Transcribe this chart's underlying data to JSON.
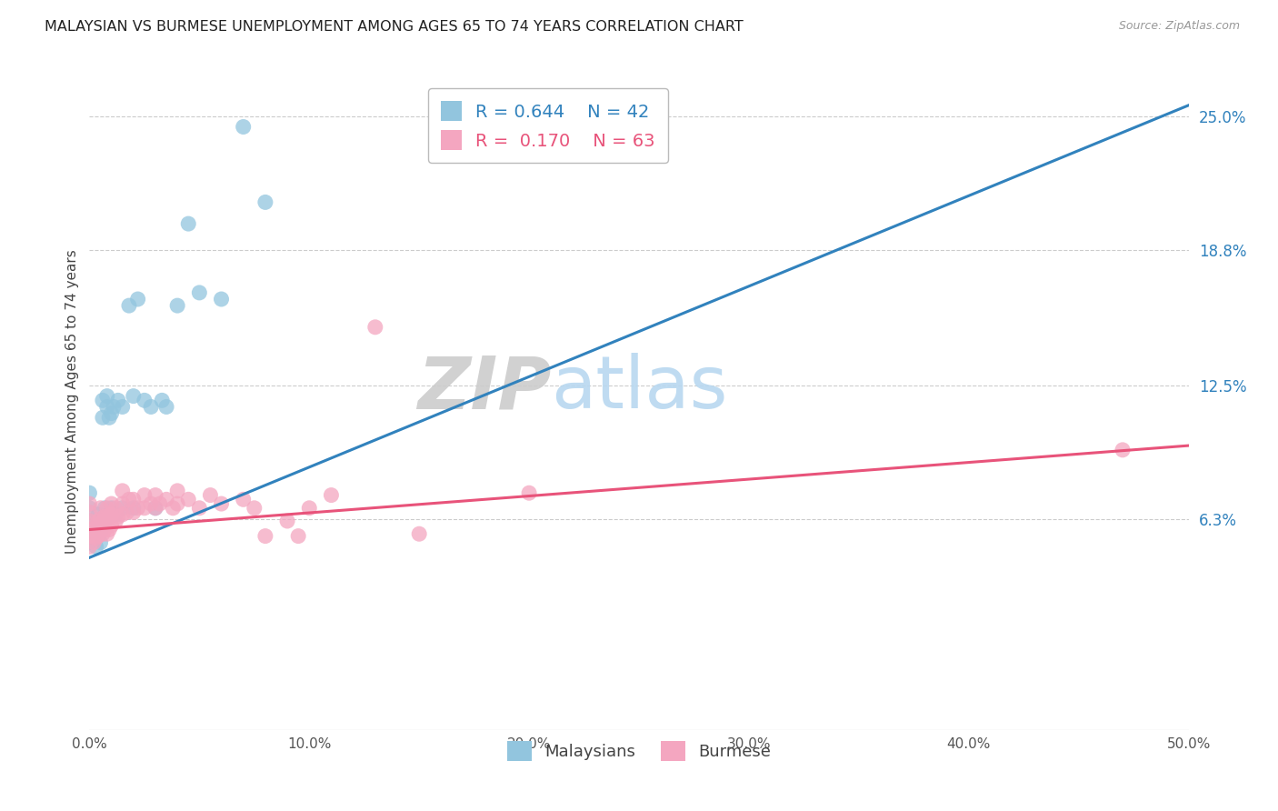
{
  "title": "MALAYSIAN VS BURMESE UNEMPLOYMENT AMONG AGES 65 TO 74 YEARS CORRELATION CHART",
  "source": "Source: ZipAtlas.com",
  "ylabel": "Unemployment Among Ages 65 to 74 years",
  "xlim": [
    0,
    0.5
  ],
  "ylim": [
    -0.035,
    0.27
  ],
  "xtick_labels": [
    "0.0%",
    "10.0%",
    "20.0%",
    "30.0%",
    "40.0%",
    "50.0%"
  ],
  "xtick_vals": [
    0,
    0.1,
    0.2,
    0.3,
    0.4,
    0.5
  ],
  "ytick_labels": [
    "6.3%",
    "12.5%",
    "18.8%",
    "25.0%"
  ],
  "ytick_vals": [
    0.063,
    0.125,
    0.188,
    0.25
  ],
  "r_malaysian": 0.644,
  "n_malaysian": 42,
  "r_burmese": 0.17,
  "n_burmese": 63,
  "color_malaysian": "#92c5de",
  "color_burmese": "#f4a6c0",
  "color_line_malaysian": "#3182bd",
  "color_line_burmese": "#e8537a",
  "malaysian_x": [
    0.0,
    0.0,
    0.0,
    0.0,
    0.0,
    0.003,
    0.003,
    0.004,
    0.004,
    0.005,
    0.005,
    0.005,
    0.006,
    0.006,
    0.007,
    0.007,
    0.008,
    0.008,
    0.009,
    0.009,
    0.01,
    0.01,
    0.011,
    0.012,
    0.013,
    0.015,
    0.015,
    0.018,
    0.02,
    0.02,
    0.022,
    0.025,
    0.028,
    0.03,
    0.033,
    0.035,
    0.04,
    0.045,
    0.05,
    0.06,
    0.07,
    0.08
  ],
  "malaysian_y": [
    0.052,
    0.058,
    0.062,
    0.068,
    0.075,
    0.05,
    0.055,
    0.06,
    0.065,
    0.052,
    0.057,
    0.063,
    0.11,
    0.118,
    0.062,
    0.068,
    0.115,
    0.12,
    0.065,
    0.11,
    0.112,
    0.068,
    0.115,
    0.065,
    0.118,
    0.068,
    0.115,
    0.162,
    0.068,
    0.12,
    0.165,
    0.118,
    0.115,
    0.068,
    0.118,
    0.115,
    0.162,
    0.2,
    0.168,
    0.165,
    0.245,
    0.21
  ],
  "burmese_x": [
    0.0,
    0.0,
    0.0,
    0.0,
    0.0,
    0.0,
    0.002,
    0.002,
    0.003,
    0.003,
    0.004,
    0.004,
    0.005,
    0.005,
    0.005,
    0.006,
    0.006,
    0.007,
    0.007,
    0.008,
    0.008,
    0.008,
    0.009,
    0.009,
    0.01,
    0.01,
    0.01,
    0.012,
    0.012,
    0.013,
    0.015,
    0.015,
    0.015,
    0.017,
    0.018,
    0.02,
    0.02,
    0.022,
    0.025,
    0.025,
    0.028,
    0.03,
    0.03,
    0.032,
    0.035,
    0.038,
    0.04,
    0.04,
    0.045,
    0.05,
    0.055,
    0.06,
    0.07,
    0.075,
    0.08,
    0.09,
    0.095,
    0.1,
    0.11,
    0.13,
    0.15,
    0.2,
    0.47
  ],
  "burmese_y": [
    0.05,
    0.055,
    0.058,
    0.062,
    0.066,
    0.07,
    0.052,
    0.058,
    0.054,
    0.06,
    0.055,
    0.062,
    0.058,
    0.063,
    0.068,
    0.056,
    0.062,
    0.058,
    0.064,
    0.056,
    0.062,
    0.068,
    0.058,
    0.064,
    0.06,
    0.065,
    0.07,
    0.062,
    0.068,
    0.064,
    0.065,
    0.07,
    0.076,
    0.066,
    0.072,
    0.066,
    0.072,
    0.068,
    0.068,
    0.074,
    0.07,
    0.068,
    0.074,
    0.07,
    0.072,
    0.068,
    0.07,
    0.076,
    0.072,
    0.068,
    0.074,
    0.07,
    0.072,
    0.068,
    0.055,
    0.062,
    0.055,
    0.068,
    0.074,
    0.152,
    0.056,
    0.075,
    0.095
  ],
  "watermark_zip": "ZIP",
  "watermark_atlas": "atlas",
  "background_color": "#ffffff",
  "grid_color": "#cccccc",
  "line_start_mal_x": 0.0,
  "line_start_mal_y": 0.045,
  "line_end_mal_x": 0.5,
  "line_end_mal_y": 0.255,
  "line_start_bur_x": 0.0,
  "line_start_bur_y": 0.058,
  "line_end_bur_x": 0.5,
  "line_end_bur_y": 0.097
}
